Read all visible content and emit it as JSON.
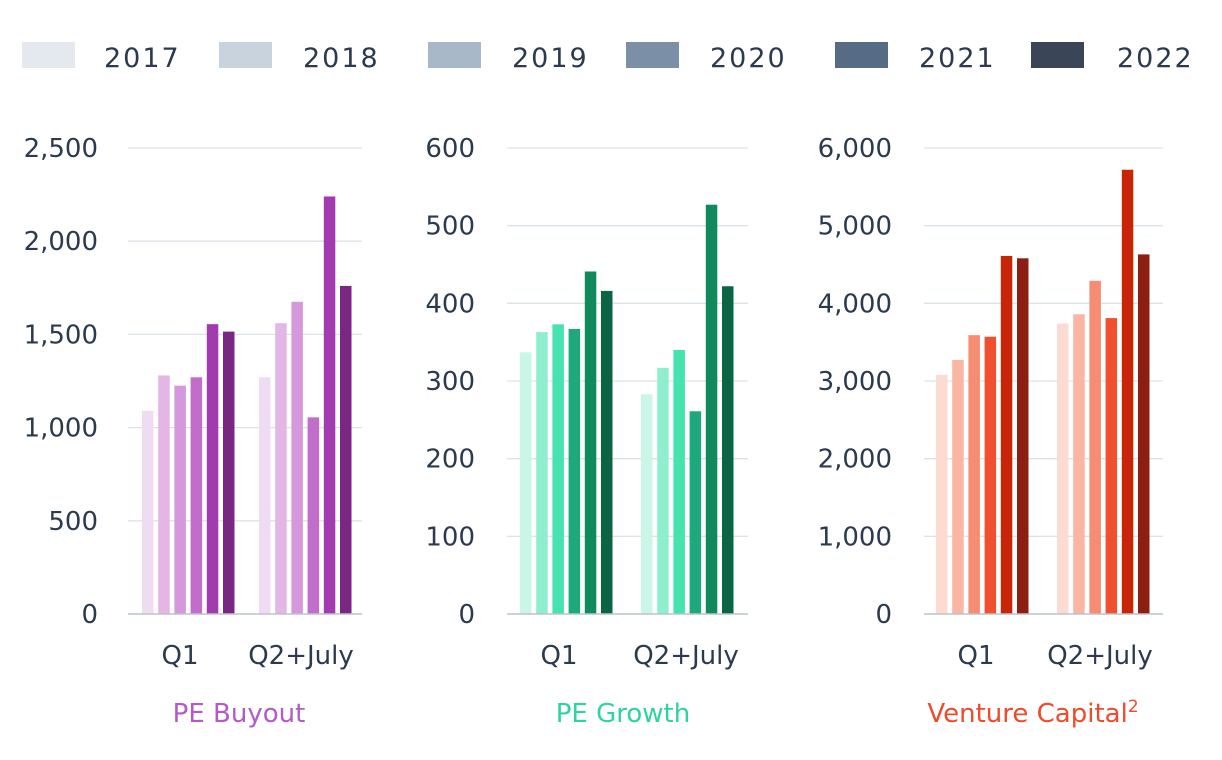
{
  "legend": [
    {
      "label": "2017",
      "color": "#e3e9ef"
    },
    {
      "label": "2018",
      "color": "#c8d3de"
    },
    {
      "label": "2019",
      "color": "#a8b8c8"
    },
    {
      "label": "2020",
      "color": "#7b90a7"
    },
    {
      "label": "2021",
      "color": "#566b84"
    },
    {
      "label": "2022",
      "color": "#3a4658"
    }
  ],
  "chart_data": [
    {
      "type": "bar",
      "title": "PE Buyout",
      "title_color": "#b25ac8",
      "categories": [
        "Q1",
        "Q2+July"
      ],
      "ylim": [
        0,
        2500
      ],
      "yticks": [
        0,
        500,
        1000,
        1500,
        2000,
        2500
      ],
      "ytick_labels": [
        "0",
        "500",
        "1,000",
        "1,500",
        "2,000",
        "2,500"
      ],
      "grid": true,
      "series": [
        {
          "name": "2017",
          "color": "#f0dcf2",
          "values": [
            1090,
            1270
          ]
        },
        {
          "name": "2018",
          "color": "#e3b6e6",
          "values": [
            1280,
            1560
          ]
        },
        {
          "name": "2019",
          "color": "#d598dc",
          "values": [
            1225,
            1675
          ]
        },
        {
          "name": "2020",
          "color": "#c26dcc",
          "values": [
            1270,
            1055
          ]
        },
        {
          "name": "2021",
          "color": "#a23ab0",
          "values": [
            1555,
            2240
          ]
        },
        {
          "name": "2022",
          "color": "#7a2784",
          "values": [
            1515,
            1760
          ]
        }
      ]
    },
    {
      "type": "bar",
      "title": "PE Growth",
      "title_color": "#2fd3a0",
      "categories": [
        "Q1",
        "Q2+July"
      ],
      "ylim": [
        0,
        600
      ],
      "yticks": [
        0,
        100,
        200,
        300,
        400,
        500,
        600
      ],
      "ytick_labels": [
        "0",
        "100",
        "200",
        "300",
        "400",
        "500",
        "600"
      ],
      "grid": true,
      "series": [
        {
          "name": "2017",
          "color": "#c9f6e6",
          "values": [
            337,
            283
          ]
        },
        {
          "name": "2018",
          "color": "#8eeecd",
          "values": [
            363,
            317
          ]
        },
        {
          "name": "2019",
          "color": "#46e3ae",
          "values": [
            373,
            340
          ]
        },
        {
          "name": "2020",
          "color": "#1ea97a",
          "values": [
            367,
            261
          ]
        },
        {
          "name": "2021",
          "color": "#108a5c",
          "values": [
            441,
            527
          ]
        },
        {
          "name": "2022",
          "color": "#0b6443",
          "values": [
            416,
            422
          ]
        }
      ]
    },
    {
      "type": "bar",
      "title": "Venture Capital",
      "title_superscript": "2",
      "title_color": "#ee4a2c",
      "categories": [
        "Q1",
        "Q2+July"
      ],
      "ylim": [
        0,
        6000
      ],
      "yticks": [
        0,
        1000,
        2000,
        3000,
        4000,
        5000,
        6000
      ],
      "ytick_labels": [
        "0",
        "1,000",
        "2,000",
        "3,000",
        "4,000",
        "5,000",
        "6,000"
      ],
      "grid": true,
      "series": [
        {
          "name": "2017",
          "color": "#fcdcd2",
          "values": [
            3080,
            3740
          ]
        },
        {
          "name": "2018",
          "color": "#f9b7a3",
          "values": [
            3270,
            3860
          ]
        },
        {
          "name": "2019",
          "color": "#f68d73",
          "values": [
            3590,
            4290
          ]
        },
        {
          "name": "2020",
          "color": "#f0502e",
          "values": [
            3570,
            3810
          ]
        },
        {
          "name": "2021",
          "color": "#c82508",
          "values": [
            4610,
            5720
          ]
        },
        {
          "name": "2022",
          "color": "#8c1f12",
          "values": [
            4580,
            4630
          ]
        }
      ]
    }
  ]
}
